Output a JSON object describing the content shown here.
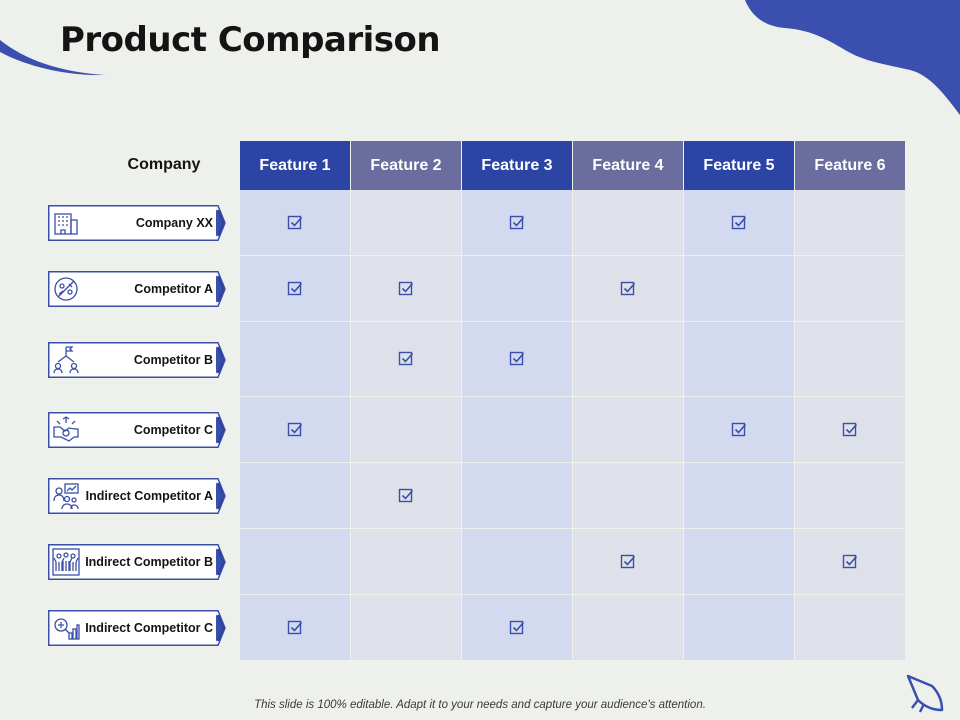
{
  "title": "Product Comparison",
  "company_header": "Company",
  "features": [
    "Feature 1",
    "Feature 2",
    "Feature 3",
    "Feature 4",
    "Feature 5",
    "Feature 6"
  ],
  "rows": [
    {
      "company": "Company XX",
      "icon": "building-icon",
      "checks": [
        true,
        false,
        true,
        false,
        true,
        false
      ]
    },
    {
      "company": "Competitor A",
      "icon": "no-competition-icon",
      "checks": [
        true,
        true,
        false,
        true,
        false,
        false
      ]
    },
    {
      "company": "Competitor B",
      "icon": "team-flag-icon",
      "checks": [
        false,
        true,
        true,
        false,
        false,
        false
      ]
    },
    {
      "company": "Competitor C",
      "icon": "handshake-money-icon",
      "checks": [
        true,
        false,
        false,
        false,
        true,
        true
      ]
    },
    {
      "company": "Indirect Competitor A",
      "icon": "analytics-team-icon",
      "checks": [
        false,
        true,
        false,
        false,
        false,
        false
      ]
    },
    {
      "company": "Indirect Competitor B",
      "icon": "crowd-icon",
      "checks": [
        false,
        false,
        false,
        true,
        false,
        true
      ]
    },
    {
      "company": "Indirect Competitor C",
      "icon": "search-chart-icon",
      "checks": [
        true,
        false,
        true,
        false,
        false,
        false
      ]
    }
  ],
  "footer": "This slide is 100% editable. Adapt it to your needs and capture your audience's attention.",
  "colors": {
    "header_dark": "#2c44a3",
    "header_light": "#6a6d9e",
    "cell_blue": "#d3daf0",
    "cell_grey": "#dfe1ea",
    "accent": "#3a4fa8",
    "background": "#eef0ec"
  }
}
